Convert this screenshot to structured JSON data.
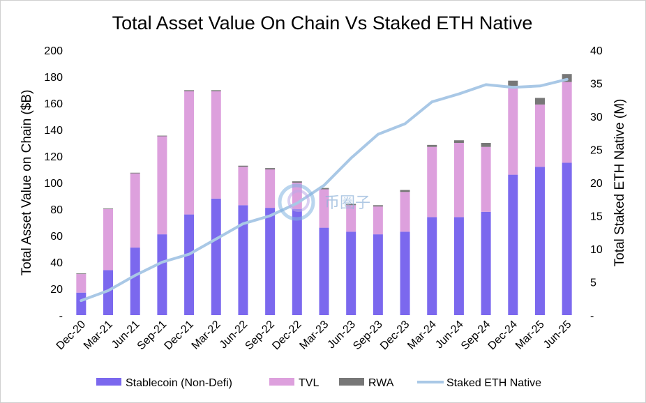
{
  "colors": {
    "stablecoin": "#7b68ee",
    "tvl": "#dda0dd",
    "rwa": "#777777",
    "staked_eth": "#a9c8e6"
  },
  "watermark_text": "币圈子",
  "chart_data": {
    "type": "bar",
    "title": "Total Asset Value On Chain Vs Staked ETH Native",
    "ylabel_left": "Total Asset Value on Chain ($B)",
    "ylabel_right": "Total Staked ETH Native (M)",
    "ylim_left": [
      0,
      200
    ],
    "ylim_right": [
      0,
      40
    ],
    "yticks_left": [
      "-",
      "20",
      "40",
      "60",
      "80",
      "100",
      "120",
      "140",
      "160",
      "180",
      "200"
    ],
    "yticks_right": [
      "-",
      "5",
      "10",
      "15",
      "20",
      "25",
      "30",
      "35",
      "40"
    ],
    "categories": [
      "Dec-20",
      "Mar-21",
      "Jun-21",
      "Sep-21",
      "Dec-21",
      "Mar-22",
      "Jun-22",
      "Sep-22",
      "Dec-22",
      "Mar-23",
      "Jun-23",
      "Sep-23",
      "Dec-23",
      "Mar-24",
      "Jun-24",
      "Sep-24",
      "Dec-24",
      "Mar-25",
      "Jun-25"
    ],
    "stacked": true,
    "legend_position": "bottom",
    "grid": false,
    "series": [
      {
        "name": "Stablecoin (Non-Defi)",
        "axis": "left",
        "kind": "bar",
        "values": [
          17,
          34,
          51,
          61,
          76,
          88,
          83,
          81,
          80,
          66,
          63,
          61,
          63,
          74,
          74,
          78,
          106,
          112,
          115
        ]
      },
      {
        "name": "TVL",
        "axis": "left",
        "kind": "bar",
        "values": [
          14,
          46,
          56,
          74,
          93,
          81,
          29,
          29,
          20,
          29,
          20,
          21,
          30,
          53,
          56,
          49,
          67,
          47,
          61
        ]
      },
      {
        "name": "RWA",
        "axis": "left",
        "kind": "bar",
        "values": [
          0.5,
          0.5,
          0.5,
          0.5,
          0.8,
          0.8,
          0.8,
          1,
          1,
          1,
          1,
          1,
          1.5,
          1.5,
          2,
          3,
          4,
          5,
          6
        ]
      },
      {
        "name": "Staked ETH Native",
        "axis": "right",
        "kind": "line",
        "values": [
          2.2,
          3.7,
          6.0,
          8.0,
          9.2,
          11.5,
          13.8,
          15.0,
          16.9,
          19.6,
          23.7,
          27.3,
          28.9,
          32.2,
          33.4,
          34.8,
          34.4,
          34.6,
          35.6
        ]
      }
    ]
  }
}
